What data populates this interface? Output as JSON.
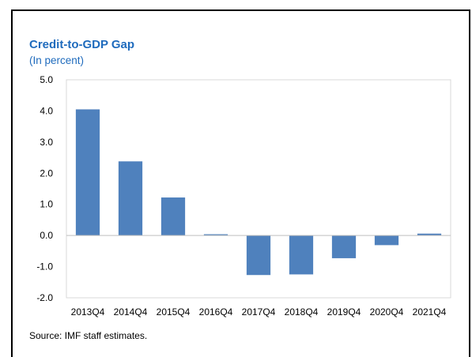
{
  "chart_data": {
    "type": "bar",
    "title": "Credit-to-GDP Gap",
    "subtitle": "(In percent)",
    "categories": [
      "2013Q4",
      "2014Q4",
      "2015Q4",
      "2016Q4",
      "2017Q4",
      "2018Q4",
      "2019Q4",
      "2020Q4",
      "2021Q4"
    ],
    "values": [
      4.05,
      2.38,
      1.22,
      0.04,
      -1.27,
      -1.25,
      -0.73,
      -0.31,
      0.06
    ],
    "ylim": [
      -2.0,
      5.0
    ],
    "yticks": [
      "5.0",
      "4.0",
      "3.0",
      "2.0",
      "1.0",
      "0.0",
      "-1.0",
      "-2.0"
    ],
    "xlabel": "",
    "ylabel": "",
    "bar_color": "#4f81bd",
    "grid": false,
    "source": "Source: IMF staff estimates."
  }
}
